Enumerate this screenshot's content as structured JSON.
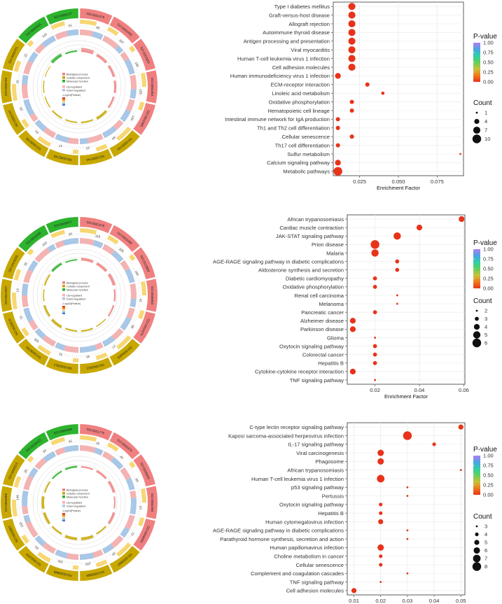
{
  "colors": {
    "pvalue_scale": [
      "#e8331b",
      "#f07a1a",
      "#c9c23a",
      "#5fcf5a",
      "#2fcfa8",
      "#4aa3e6",
      "#b07ef0"
    ],
    "dot": "#e8331b",
    "bp": "#f08080",
    "cc": "#c8a800",
    "mf": "#2db32d",
    "up": "#f4b3b3",
    "down": "#a9c7e6",
    "panel_bg": "#ffffff",
    "grid": "#ebebeb"
  },
  "circos": [
    {
      "legend": {
        "bp": "Biological process",
        "cc": "Cellular component",
        "mf": "Molecular function",
        "up": "Up-regulated",
        "down": "Down-regulated",
        "pv_title": "-Log10(Pvalue)"
      },
      "outer_labels": [
        "GO:0002479",
        "GO:0002482",
        "GO:0002483",
        "GO:0002484",
        "GO:0002485",
        "GO:0005743",
        "GO:0005744",
        "GO:0005745",
        "GO:0005746",
        "GO:0005747",
        "GO:0005750",
        "GO:0005751",
        "GO:0003954",
        "GO:0008137"
      ],
      "count_labels": [
        "48",
        "307",
        "185",
        "155",
        "134",
        "84",
        "23",
        "47",
        "61",
        "33",
        "26",
        "22",
        "140",
        "51"
      ]
    },
    {
      "legend": {
        "bp": "Biological process",
        "cc": "Cellular component",
        "mf": "Molecular function",
        "up": "Up-regulated",
        "down": "Down-regulated",
        "pv_title": "-Log10(Pvalue)"
      },
      "outer_labels": [
        "GO:0002479",
        "GO:0002480",
        "GO:0019882",
        "GO:0048002",
        "GO:0002474",
        "GO:0006955",
        "GO:0042611",
        "GO:0042612",
        "GO:0005765",
        "GO:0030670",
        "GO:0012507",
        "GO:0023026",
        "GO:0042605",
        "GO:0046977"
      ],
      "count_labels": [
        "118",
        "205",
        "184",
        "42",
        "48",
        "27",
        "35",
        "51",
        "169",
        "72",
        "19",
        "35",
        "103",
        "29"
      ]
    },
    {
      "legend": {
        "bp": "Biological process",
        "cc": "Cellular component",
        "mf": "Molecular function",
        "up": "Up-regulated",
        "down": "Down-regulated",
        "pv_title": "-Log10(Pvalue)"
      },
      "outer_labels": [
        "GO:0001776",
        "GO:0002376",
        "GO:0006955",
        "GO:0002250",
        "GO:0006959",
        "GO:0009897",
        "GO:0005886",
        "GO:0009986",
        "GO:0031224",
        "GO:0005887",
        "GO:0004888",
        "GO:0005515",
        "GO:0038023",
        "GO:0060089"
      ],
      "count_labels": [
        "26",
        "45",
        "69",
        "19",
        "73",
        "30",
        "200",
        "190",
        "63",
        "133",
        "146",
        "28",
        "34",
        "42"
      ]
    }
  ],
  "chart_data": [
    {
      "type": "scatter",
      "xlabel": "Enrichment Factor",
      "ylabel": "",
      "xlim": [
        0.008,
        0.092
      ],
      "xticks": [
        0.025,
        0.05,
        0.075
      ],
      "xtick_labels": [
        "0.025",
        "0.050",
        "0.075"
      ],
      "pvalue_legend_title": "P-value",
      "pvalue_ticks": [
        "1.00",
        "0.75",
        "0.50",
        "0.25",
        "0.00"
      ],
      "count_legend_title": "Count",
      "count_legend": [
        1,
        4,
        7,
        10
      ],
      "points": [
        {
          "term": "Type I diabetes mellitus",
          "x": 0.02,
          "count": 7,
          "p": 0.0
        },
        {
          "term": "Graft-versus-host disease",
          "x": 0.02,
          "count": 7,
          "p": 0.0
        },
        {
          "term": "Allograft rejection",
          "x": 0.02,
          "count": 7,
          "p": 0.0
        },
        {
          "term": "Autoimmune thyroid disease",
          "x": 0.02,
          "count": 7,
          "p": 0.0
        },
        {
          "term": "Antigen processing and presentation",
          "x": 0.02,
          "count": 7,
          "p": 0.0
        },
        {
          "term": "Viral myocarditis",
          "x": 0.02,
          "count": 7,
          "p": 0.0
        },
        {
          "term": "Human T-cell leukemia virus 1 infection",
          "x": 0.02,
          "count": 7,
          "p": 0.0
        },
        {
          "term": "Cell adhesion molecules",
          "x": 0.02,
          "count": 7,
          "p": 0.0
        },
        {
          "term": "Human immunodeficiency virus 1 infection",
          "x": 0.011,
          "count": 5,
          "p": 0.0
        },
        {
          "term": "ECM-receptor interaction",
          "x": 0.03,
          "count": 3,
          "p": 0.0
        },
        {
          "term": "Linoleic acid metabolism",
          "x": 0.04,
          "count": 2,
          "p": 0.0
        },
        {
          "term": "Oxidative phosphorylation",
          "x": 0.02,
          "count": 3,
          "p": 0.0
        },
        {
          "term": "Hematopoietic cell lineage",
          "x": 0.02,
          "count": 3,
          "p": 0.0
        },
        {
          "term": "Intestinal immune network for IgA production",
          "x": 0.011,
          "count": 3,
          "p": 0.0
        },
        {
          "term": "Th1 and Th2 cell differentiation",
          "x": 0.011,
          "count": 3,
          "p": 0.0
        },
        {
          "term": "Cellular senescence",
          "x": 0.02,
          "count": 3,
          "p": 0.0
        },
        {
          "term": "Th17 cell differentiation",
          "x": 0.011,
          "count": 3,
          "p": 0.0
        },
        {
          "term": "Sulfur metabolism",
          "x": 0.09,
          "count": 1,
          "p": 0.0
        },
        {
          "term": "Calcium signaling pathway",
          "x": 0.011,
          "count": 5,
          "p": 0.0
        },
        {
          "term": "Metabolic pathways",
          "x": 0.011,
          "count": 10,
          "p": 0.0
        }
      ]
    },
    {
      "type": "scatter",
      "xlabel": "Enrichment Factor",
      "ylabel": "",
      "xlim": [
        0.0075,
        0.0605
      ],
      "xticks": [
        0.02,
        0.04,
        0.06
      ],
      "xtick_labels": [
        "0.02",
        "0.04",
        "0.06"
      ],
      "pvalue_legend_title": "P-value",
      "pvalue_ticks": [
        "1.00",
        "0.75",
        "0.50",
        "0.25",
        "0.00"
      ],
      "count_legend_title": "Count",
      "count_legend": [
        2,
        3,
        4,
        5,
        6
      ],
      "points": [
        {
          "term": "African trypanosomiasis",
          "x": 0.059,
          "count": 4,
          "p": 0.0
        },
        {
          "term": "Cardiac muscle contraction",
          "x": 0.04,
          "count": 4,
          "p": 0.0
        },
        {
          "term": "JAK-STAT signaling pathway",
          "x": 0.03,
          "count": 5,
          "p": 0.0
        },
        {
          "term": "Prion disease",
          "x": 0.02,
          "count": 6,
          "p": 0.0
        },
        {
          "term": "Malaria",
          "x": 0.02,
          "count": 5,
          "p": 0.0
        },
        {
          "term": "AGE-RAGE signaling pathway in diabetic complications",
          "x": 0.03,
          "count": 3,
          "p": 0.0
        },
        {
          "term": "Aldosterone synthesis and secretion",
          "x": 0.03,
          "count": 3,
          "p": 0.0
        },
        {
          "term": "Diabetic cardiomyopathy",
          "x": 0.02,
          "count": 3,
          "p": 0.0
        },
        {
          "term": "Oxidative phosphorylation",
          "x": 0.02,
          "count": 3,
          "p": 0.0
        },
        {
          "term": "Renal cell carcinoma",
          "x": 0.03,
          "count": 2,
          "p": 0.0
        },
        {
          "term": "Melanoma",
          "x": 0.03,
          "count": 2,
          "p": 0.0
        },
        {
          "term": "Pancreatic cancer",
          "x": 0.02,
          "count": 3,
          "p": 0.0
        },
        {
          "term": "Alzheimer disease",
          "x": 0.01,
          "count": 4,
          "p": 0.0
        },
        {
          "term": "Parkinson disease",
          "x": 0.01,
          "count": 4,
          "p": 0.0
        },
        {
          "term": "Glioma",
          "x": 0.02,
          "count": 2,
          "p": 0.0
        },
        {
          "term": "Oxytocin signaling pathway",
          "x": 0.02,
          "count": 3,
          "p": 0.0
        },
        {
          "term": "Colorectal cancer",
          "x": 0.02,
          "count": 3,
          "p": 0.0
        },
        {
          "term": "Hepatitis B",
          "x": 0.02,
          "count": 3,
          "p": 0.0
        },
        {
          "term": "Cytokine-cytokine receptor interaction",
          "x": 0.01,
          "count": 4,
          "p": 0.0
        },
        {
          "term": "TNF signaling pathway",
          "x": 0.02,
          "count": 2,
          "p": 0.0
        }
      ]
    },
    {
      "type": "scatter",
      "xlabel": "Enrichment Factor",
      "ylabel": "",
      "xlim": [
        0.0075,
        0.0515
      ],
      "xticks": [
        0.01,
        0.02,
        0.03,
        0.04,
        0.05
      ],
      "xtick_labels": [
        "0.01",
        "0.02",
        "0.03",
        "0.04",
        "0.05"
      ],
      "pvalue_legend_title": "P-value",
      "pvalue_ticks": [
        "1.00",
        "0.75",
        "0.50",
        "0.25",
        "0.00"
      ],
      "count_legend_title": "Count",
      "count_legend": [
        3,
        4,
        5,
        6,
        7,
        8
      ],
      "points": [
        {
          "term": "C-type lectin receptor signaling pathway",
          "x": 0.05,
          "count": 5,
          "p": 0.0
        },
        {
          "term": "Kaposi sarcoma-associated herpesvirus infection",
          "x": 0.03,
          "count": 8,
          "p": 0.0
        },
        {
          "term": "IL-17 signaling pathway",
          "x": 0.04,
          "count": 4,
          "p": 0.0
        },
        {
          "term": "Viral carcinogenesis",
          "x": 0.02,
          "count": 6,
          "p": 0.0
        },
        {
          "term": "Phagosome",
          "x": 0.02,
          "count": 6,
          "p": 0.0
        },
        {
          "term": "African trypanosomiasis",
          "x": 0.05,
          "count": 3,
          "p": 0.0
        },
        {
          "term": "Human T-cell leukemia virus 1 infection",
          "x": 0.02,
          "count": 7,
          "p": 0.0
        },
        {
          "term": "p53 signaling pathway",
          "x": 0.03,
          "count": 3,
          "p": 0.0
        },
        {
          "term": "Pertussis",
          "x": 0.03,
          "count": 3,
          "p": 0.0
        },
        {
          "term": "Oxytocin signaling pathway",
          "x": 0.02,
          "count": 4,
          "p": 0.0
        },
        {
          "term": "Hepatitis B",
          "x": 0.02,
          "count": 4,
          "p": 0.0
        },
        {
          "term": "Human cytomegalovirus infection",
          "x": 0.02,
          "count": 5,
          "p": 0.0
        },
        {
          "term": "AGE-RAGE signaling pathway in diabetic complications",
          "x": 0.03,
          "count": 3,
          "p": 0.0
        },
        {
          "term": "Parathyroid hormone synthesis, secretion and action",
          "x": 0.03,
          "count": 3,
          "p": 0.0
        },
        {
          "term": "Human papillomavirus infection",
          "x": 0.02,
          "count": 6,
          "p": 0.0
        },
        {
          "term": "Choline metabolism in cancer",
          "x": 0.02,
          "count": 4,
          "p": 0.0
        },
        {
          "term": "Cellular senescence",
          "x": 0.02,
          "count": 4,
          "p": 0.0
        },
        {
          "term": "Complement and coagulation cascades",
          "x": 0.03,
          "count": 3,
          "p": 0.0
        },
        {
          "term": "TNF signaling pathway",
          "x": 0.02,
          "count": 3,
          "p": 0.0
        },
        {
          "term": "Cell adhesion molecules",
          "x": 0.01,
          "count": 5,
          "p": 0.0
        }
      ]
    }
  ]
}
